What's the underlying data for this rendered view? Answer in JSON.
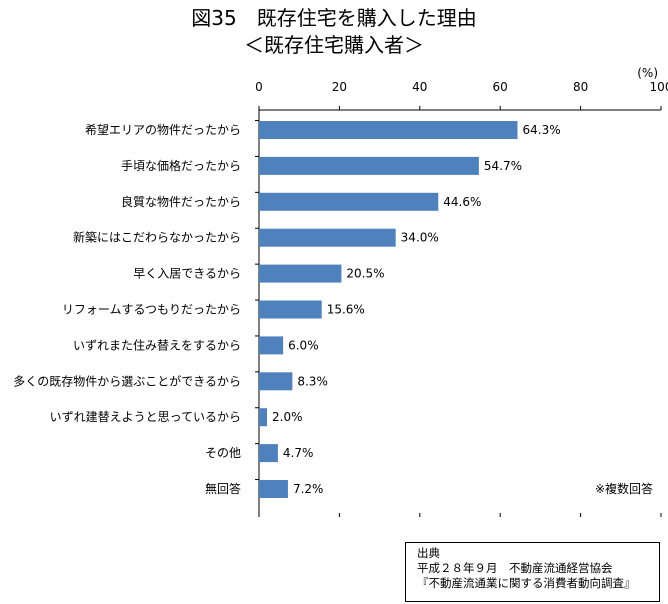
{
  "title": "図35　既存住宅を購入した理由",
  "subtitle": "＜既存住宅購入者＞",
  "chart_data": {
    "type": "bar",
    "orientation": "horizontal",
    "unit_label": "(%)",
    "xlim": [
      0,
      100
    ],
    "xticks": [
      0,
      20,
      40,
      60,
      80,
      100
    ],
    "grid": false,
    "color": "#4f81bd",
    "categories": [
      "希望エリアの物件だったから",
      "手頃な価格だったから",
      "良質な物件だったから",
      "新築にはこだわらなかったから",
      "早く入居できるから",
      "リフォームするつもりだったから",
      "いずれまた住み替えをするから",
      "多くの既存物件から選ぶことができるから",
      "いずれ建替えようと思っているから",
      "その他",
      "無回答"
    ],
    "values": [
      64.3,
      54.7,
      44.6,
      34.0,
      20.5,
      15.6,
      6.0,
      8.3,
      2.0,
      4.7,
      7.2
    ],
    "value_labels": [
      "64.3%",
      "54.7%",
      "44.6%",
      "34.0%",
      "20.5%",
      "15.6%",
      "6.0%",
      "8.3%",
      "2.0%",
      "4.7%",
      "7.2%"
    ],
    "note": "※複数回答"
  },
  "source": {
    "heading": "出典",
    "line1": "平成２８年９月　不動産流通経営協会",
    "line2": "『不動産流通業に関する消費者動向調査』"
  }
}
